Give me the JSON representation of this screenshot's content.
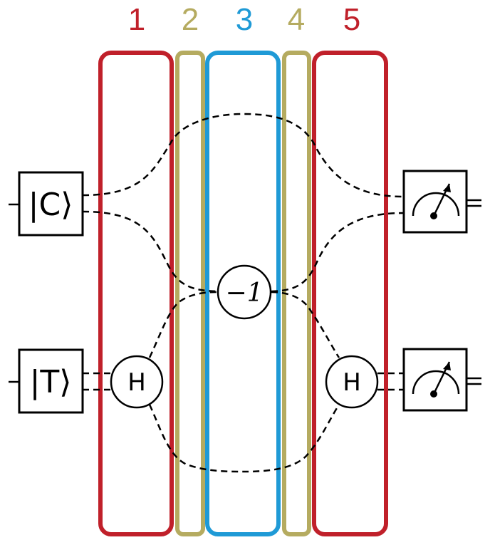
{
  "colors": {
    "red": "#c0202a",
    "olive": "#b5ab60",
    "blue": "#1f9ad6"
  },
  "stages": [
    {
      "label": "1",
      "color": "#c0202a"
    },
    {
      "label": "2",
      "color": "#b5ab60"
    },
    {
      "label": "3",
      "color": "#1f9ad6"
    },
    {
      "label": "4",
      "color": "#b5ab60"
    },
    {
      "label": "5",
      "color": "#c0202a"
    }
  ],
  "inputs": {
    "control": "|C⟩",
    "target": "|T⟩"
  },
  "gates": {
    "hadamard_left": "H",
    "hadamard_right": "H",
    "phase": "−1"
  },
  "detectors": [
    "meter-icon",
    "meter-icon"
  ]
}
